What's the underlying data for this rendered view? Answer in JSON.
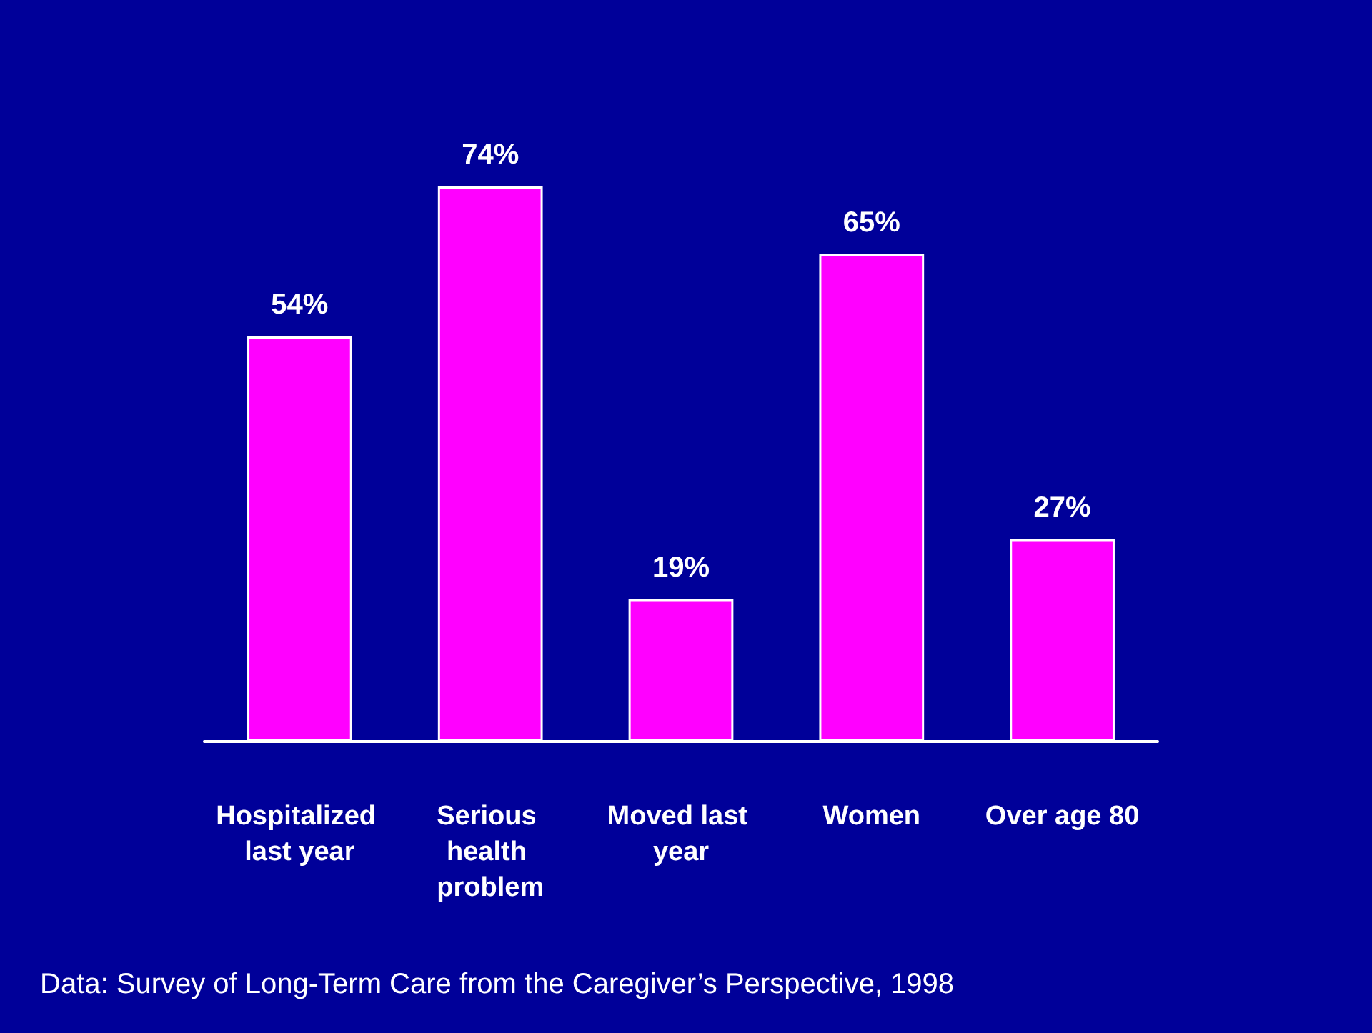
{
  "chart_data": {
    "type": "bar",
    "categories": [
      "Hospitalized last year",
      "Serious health problem",
      "Moved last year",
      "Women",
      "Over age 80"
    ],
    "values": [
      54,
      74,
      19,
      65,
      27
    ],
    "value_labels": [
      "54%",
      "74%",
      "19%",
      "65%",
      "27%"
    ],
    "color": "#ff00ff",
    "grid": false,
    "annotations": [
      "Data: Survey of Long-Term Care from the Caregiver’s Perspective, 1998"
    ]
  }
}
